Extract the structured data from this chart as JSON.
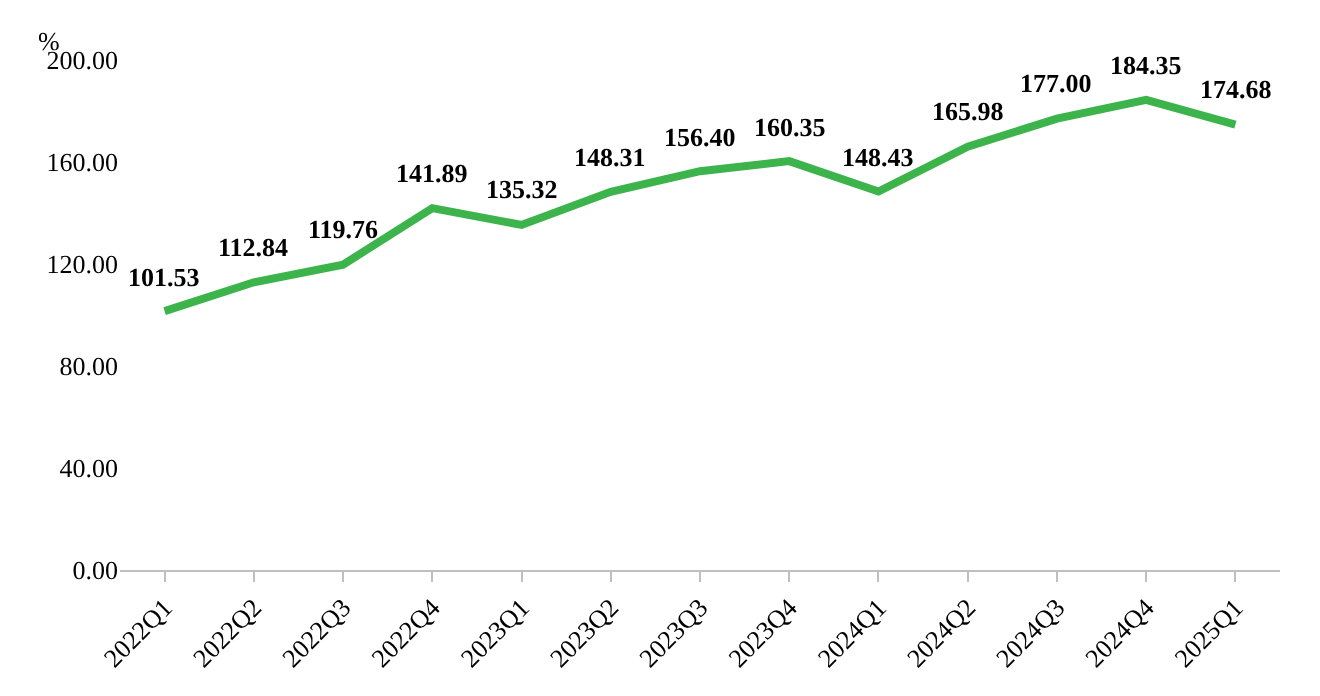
{
  "chart_data": {
    "type": "line",
    "ylabel": "%",
    "categories": [
      "2022Q1",
      "2022Q2",
      "2022Q3",
      "2022Q4",
      "2023Q1",
      "2023Q2",
      "2023Q3",
      "2023Q4",
      "2024Q1",
      "2024Q2",
      "2024Q3",
      "2024Q4",
      "2025Q1"
    ],
    "series": [
      {
        "color": "#3cb44b",
        "values": [
          101.53,
          112.84,
          119.76,
          141.89,
          135.32,
          148.31,
          156.4,
          160.35,
          148.43,
          165.98,
          177.0,
          184.35,
          174.68
        ]
      }
    ],
    "value_labels": [
      "101.53",
      "112.84",
      "119.76",
      "141.89",
      "135.32",
      "148.31",
      "156.40",
      "160.35",
      "148.43",
      "165.98",
      "177.00",
      "184.35",
      "174.68"
    ],
    "ylim": [
      0,
      200
    ],
    "yticks": [
      {
        "value": 0,
        "label": "0.00"
      },
      {
        "value": 40,
        "label": "40.00"
      },
      {
        "value": 80,
        "label": "80.00"
      },
      {
        "value": 120,
        "label": "120.00"
      },
      {
        "value": 160,
        "label": "160.00"
      },
      {
        "value": 200,
        "label": "200.00"
      }
    ],
    "marker": "none",
    "line_style": "solid"
  }
}
